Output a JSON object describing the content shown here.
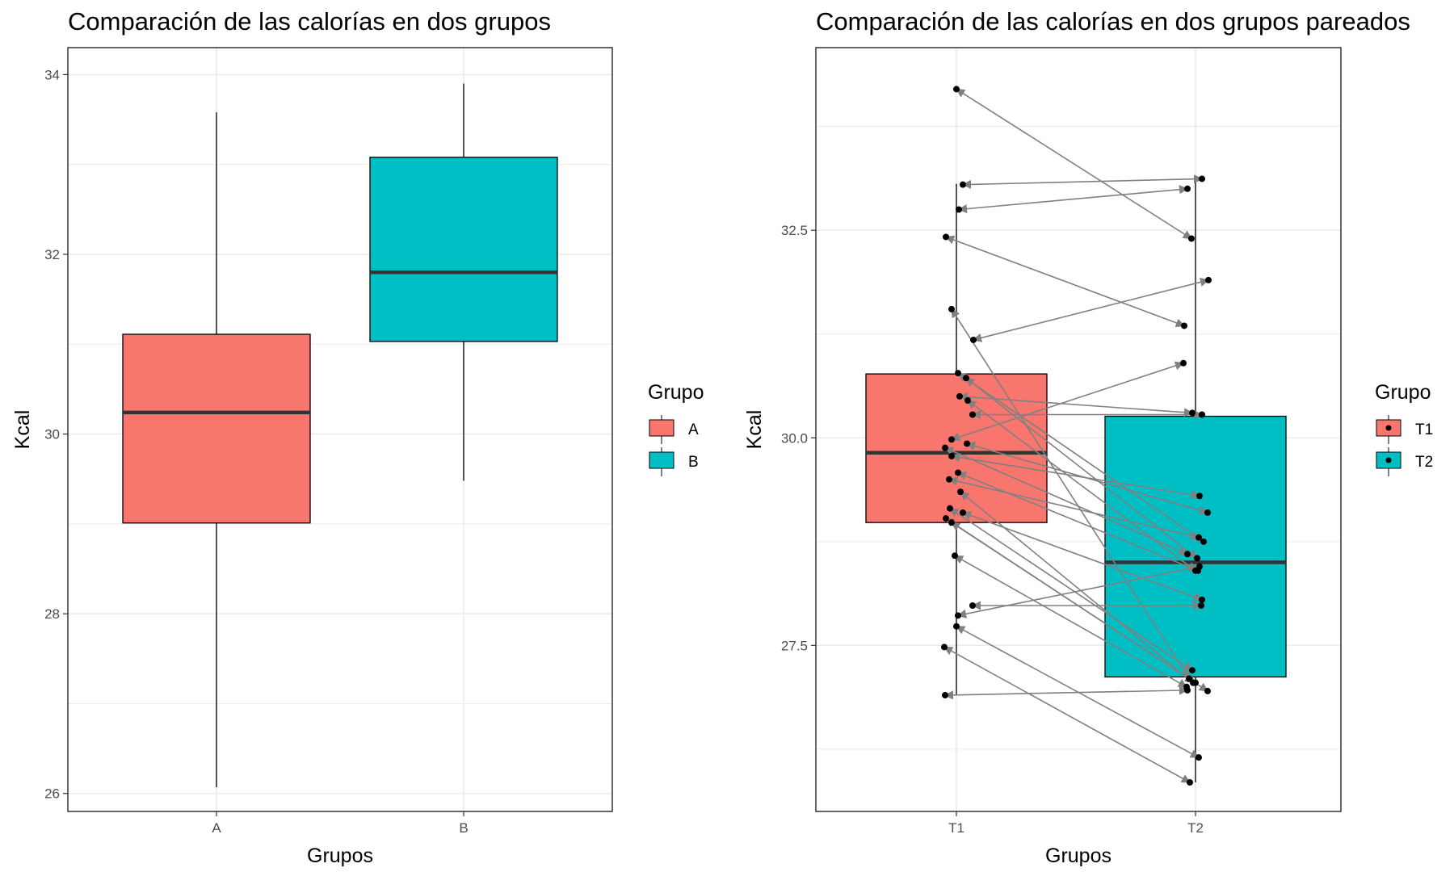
{
  "colors": {
    "group1": "#F8766D",
    "group2": "#00BFC4",
    "arrow": "#808080",
    "grid": "#EBEBEB",
    "line": "#333333"
  },
  "chart_data": [
    {
      "type": "box",
      "title": "Comparación de las calorías en dos grupos",
      "xlabel": "Grupos",
      "ylabel": "Kcal",
      "ylim": [
        25.8,
        34.3
      ],
      "yticks": [
        26,
        28,
        30,
        32,
        34
      ],
      "ytick_labels": [
        "26",
        "28",
        "30",
        "32",
        "34"
      ],
      "categories": [
        "A",
        "B"
      ],
      "legend_title": "Grupo",
      "legend_labels": [
        "A",
        "B"
      ],
      "boxes": [
        {
          "category": "A",
          "min": 26.07,
          "q1": 29.01,
          "median": 30.24,
          "q3": 31.11,
          "max": 33.58
        },
        {
          "category": "B",
          "min": 29.48,
          "q1": 31.03,
          "median": 31.8,
          "q3": 33.08,
          "max": 33.9
        }
      ]
    },
    {
      "type": "box",
      "title": "Comparación de las calorías en dos grupos pareados",
      "xlabel": "Grupos",
      "ylabel": "Kcal",
      "ylim": [
        25.5,
        34.7
      ],
      "yticks": [
        27.5,
        30.0,
        32.5
      ],
      "ytick_labels": [
        "27.5",
        "30.0",
        "32.5"
      ],
      "categories": [
        "T1",
        "T2"
      ],
      "legend_title": "Grupo",
      "legend_labels": [
        "T1",
        "T2"
      ],
      "boxes": [
        {
          "category": "T1",
          "min": 26.9,
          "q1": 28.98,
          "median": 29.82,
          "q3": 30.77,
          "max": 33.06
        },
        {
          "category": "T2",
          "min": 25.85,
          "q1": 27.12,
          "median": 28.5,
          "q3": 30.26,
          "max": 33.12
        }
      ],
      "pairs": [
        {
          "t1": 34.2,
          "t2": 32.4
        },
        {
          "t1": 33.05,
          "t2": 33.12
        },
        {
          "t1": 32.75,
          "t2": 33.0
        },
        {
          "t1": 32.42,
          "t2": 31.35
        },
        {
          "t1": 31.55,
          "t2": 27.1
        },
        {
          "t1": 31.18,
          "t2": 31.9
        },
        {
          "t1": 30.78,
          "t2": 28.75
        },
        {
          "t1": 30.72,
          "t2": 28.55
        },
        {
          "t1": 30.5,
          "t2": 30.3
        },
        {
          "t1": 30.45,
          "t2": 28.4
        },
        {
          "t1": 30.28,
          "t2": 30.28
        },
        {
          "t1": 29.98,
          "t2": 30.9
        },
        {
          "t1": 29.93,
          "t2": 29.1
        },
        {
          "t1": 29.88,
          "t2": 28.6
        },
        {
          "t1": 29.78,
          "t2": 29.3
        },
        {
          "t1": 29.58,
          "t2": 28.4
        },
        {
          "t1": 29.5,
          "t2": 28.8
        },
        {
          "t1": 29.35,
          "t2": 27.05
        },
        {
          "t1": 29.15,
          "t2": 27.2
        },
        {
          "t1": 29.1,
          "t2": 28.05
        },
        {
          "t1": 29.03,
          "t2": 26.95
        },
        {
          "t1": 28.98,
          "t2": 27.05
        },
        {
          "t1": 28.58,
          "t2": 27.0
        },
        {
          "t1": 27.98,
          "t2": 27.98
        },
        {
          "t1": 27.86,
          "t2": 28.45
        },
        {
          "t1": 27.73,
          "t2": 26.15
        },
        {
          "t1": 27.48,
          "t2": 25.85
        },
        {
          "t1": 26.9,
          "t2": 26.96
        }
      ]
    }
  ]
}
